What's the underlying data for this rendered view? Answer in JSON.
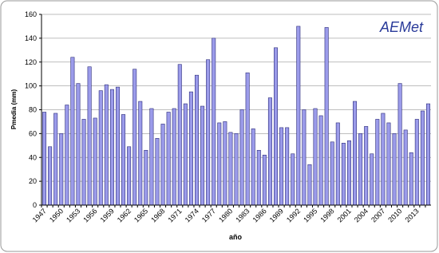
{
  "chart_data": {
    "type": "bar",
    "logo": "AEMet",
    "x_label": "año",
    "y_label": "Pmedia (mm)",
    "categories": [
      "1947",
      null,
      null,
      "1950",
      null,
      null,
      "1953",
      null,
      null,
      "1956",
      null,
      null,
      "1959",
      null,
      null,
      "1962",
      null,
      null,
      "1965",
      null,
      null,
      "1968",
      null,
      null,
      "1971",
      null,
      null,
      "1974",
      null,
      null,
      "1977",
      null,
      null,
      "1980",
      null,
      null,
      "1983",
      null,
      null,
      "1986",
      null,
      null,
      "1989",
      null,
      null,
      "1992",
      null,
      null,
      "1995",
      null,
      null,
      "1998",
      null,
      null,
      "2001",
      null,
      null,
      "2004",
      null,
      null,
      "2007",
      null,
      null,
      "2010",
      null,
      null,
      "2013",
      null,
      null
    ],
    "values": [
      78,
      49,
      77,
      60,
      84,
      124,
      102,
      72,
      116,
      73,
      96,
      101,
      97,
      99,
      76,
      49,
      114,
      87,
      46,
      81,
      56,
      68,
      78,
      81,
      118,
      85,
      95,
      109,
      83,
      122,
      140,
      69,
      70,
      61,
      60,
      80,
      111,
      64,
      46,
      42,
      90,
      132,
      65,
      65,
      43,
      150,
      80,
      34,
      81,
      75,
      149,
      53,
      69,
      52,
      54,
      87,
      60,
      66,
      43,
      72,
      77,
      69,
      60,
      102,
      63,
      44,
      72,
      79,
      85
    ],
    "color": "#9b9bea",
    "edge_color": "#2b2b7a",
    "ylim": [
      0,
      160
    ],
    "yticks": [
      0,
      20,
      40,
      60,
      80,
      100,
      120,
      140,
      160
    ],
    "grid": true
  }
}
